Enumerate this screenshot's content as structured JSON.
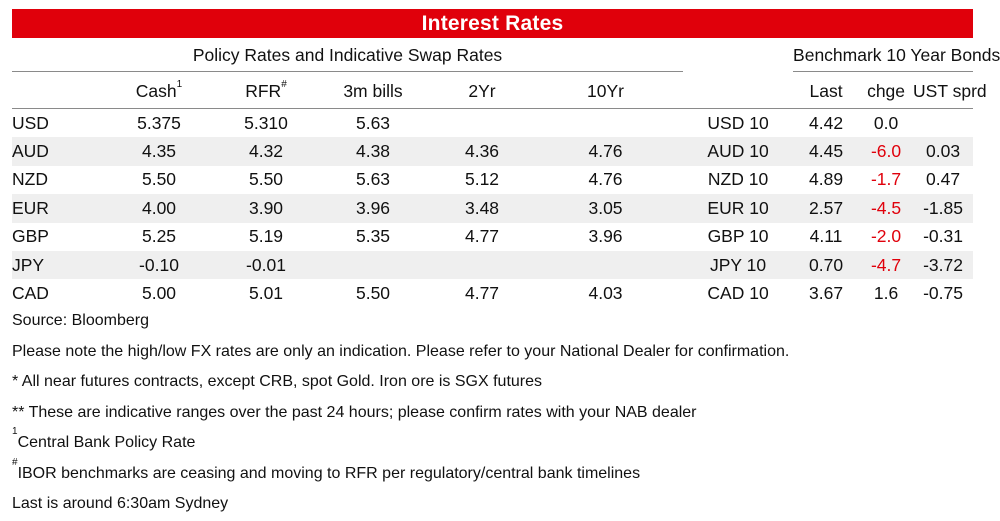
{
  "banner_title": "Interest Rates",
  "sections": {
    "left": "Policy Rates and Indicative Swap Rates",
    "right": "Benchmark 10 Year Bonds"
  },
  "columns": {
    "cash": "Cash",
    "cash_sup": "1",
    "rfr": "RFR",
    "rfr_sup": "#",
    "bills3m": "3m bills",
    "swap2y": "2Yr",
    "swap10y": "10Yr",
    "last": "Last",
    "chge": "chge",
    "ust_sprd": "UST sprd"
  },
  "negative_color": "#e0000b",
  "rows": [
    {
      "ccy": "USD",
      "cash": "5.375",
      "rfr": "5.310",
      "bills3m": "5.63",
      "swap2y": "",
      "swap10y": "",
      "bond": "USD 10",
      "last": "4.42",
      "chge": "0.0",
      "ust_sprd": ""
    },
    {
      "ccy": "AUD",
      "cash": "4.35",
      "rfr": "4.32",
      "bills3m": "4.38",
      "swap2y": "4.36",
      "swap10y": "4.76",
      "bond": "AUD 10",
      "last": "4.45",
      "chge": "-6.0",
      "ust_sprd": "0.03"
    },
    {
      "ccy": "NZD",
      "cash": "5.50",
      "rfr": "5.50",
      "bills3m": "5.63",
      "swap2y": "5.12",
      "swap10y": "4.76",
      "bond": "NZD 10",
      "last": "4.89",
      "chge": "-1.7",
      "ust_sprd": "0.47"
    },
    {
      "ccy": "EUR",
      "cash": "4.00",
      "rfr": "3.90",
      "bills3m": "3.96",
      "swap2y": "3.48",
      "swap10y": "3.05",
      "bond": "EUR 10",
      "last": "2.57",
      "chge": "-4.5",
      "ust_sprd": "-1.85"
    },
    {
      "ccy": "GBP",
      "cash": "5.25",
      "rfr": "5.19",
      "bills3m": "5.35",
      "swap2y": "4.77",
      "swap10y": "3.96",
      "bond": "GBP 10",
      "last": "4.11",
      "chge": "-2.0",
      "ust_sprd": "-0.31"
    },
    {
      "ccy": "JPY",
      "cash": "-0.10",
      "rfr": "-0.01",
      "bills3m": "",
      "swap2y": "",
      "swap10y": "",
      "bond": "JPY 10",
      "last": "0.70",
      "chge": "-4.7",
      "ust_sprd": "-3.72"
    },
    {
      "ccy": "CAD",
      "cash": "5.00",
      "rfr": "5.01",
      "bills3m": "5.50",
      "swap2y": "4.77",
      "swap10y": "4.03",
      "bond": "CAD 10",
      "last": "3.67",
      "chge": "1.6",
      "ust_sprd": "-0.75"
    }
  ],
  "notes": {
    "source": "Source: Bloomberg",
    "disclaimer": "Please note the high/low FX rates are only an indication. Please refer to your National Dealer for confirmation.",
    "futures": "* All near futures contracts, except CRB, spot Gold.  Iron ore is SGX futures",
    "ranges": "** These are indicative ranges over the past 24 hours; please confirm rates with your NAB dealer",
    "fn1_mark": "1",
    "fn1_text": "Central Bank Policy Rate",
    "fn2_mark": "#",
    "fn2_text": "IBOR benchmarks are ceasing and moving to RFR per regulatory/central bank timelines",
    "last_time": "Last is around 6:30am Sydney"
  }
}
